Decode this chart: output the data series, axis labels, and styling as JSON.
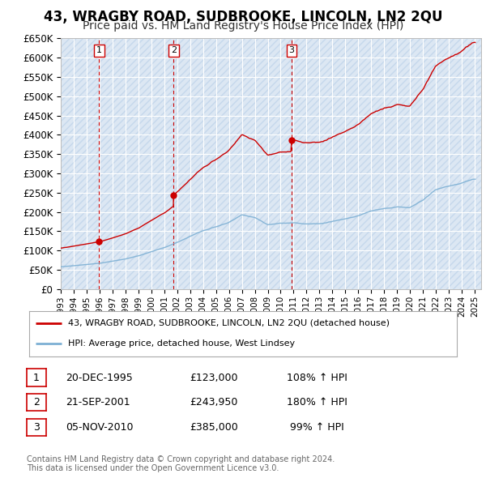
{
  "title": "43, WRAGBY ROAD, SUDBROOKE, LINCOLN, LN2 2QU",
  "subtitle": "Price paid vs. HM Land Registry's House Price Index (HPI)",
  "ylim": [
    0,
    650000
  ],
  "yticks": [
    0,
    50000,
    100000,
    150000,
    200000,
    250000,
    300000,
    350000,
    400000,
    450000,
    500000,
    550000,
    600000,
    650000
  ],
  "background_color": "#ffffff",
  "plot_bg_color": "#dce7f3",
  "grid_color": "#ffffff",
  "sale_color": "#cc0000",
  "hpi_color": "#7db0d4",
  "vline_color": "#cc0000",
  "sales": [
    {
      "date_num": 1995.97,
      "price": 123000,
      "label": "1"
    },
    {
      "date_num": 2001.72,
      "price": 243950,
      "label": "2"
    },
    {
      "date_num": 2010.85,
      "price": 385000,
      "label": "3"
    }
  ],
  "legend_sale_label": "43, WRAGBY ROAD, SUDBROOKE, LINCOLN, LN2 2QU (detached house)",
  "legend_hpi_label": "HPI: Average price, detached house, West Lindsey",
  "table_rows": [
    {
      "num": "1",
      "date": "20-DEC-1995",
      "price": "£123,000",
      "hpi": "108% ↑ HPI"
    },
    {
      "num": "2",
      "date": "21-SEP-2001",
      "price": "£243,950",
      "hpi": "180% ↑ HPI"
    },
    {
      "num": "3",
      "date": "05-NOV-2010",
      "price": "£385,000",
      "hpi": " 99% ↑ HPI"
    }
  ],
  "footnote": "Contains HM Land Registry data © Crown copyright and database right 2024.\nThis data is licensed under the Open Government Licence v3.0.",
  "title_fontsize": 12,
  "subtitle_fontsize": 10
}
